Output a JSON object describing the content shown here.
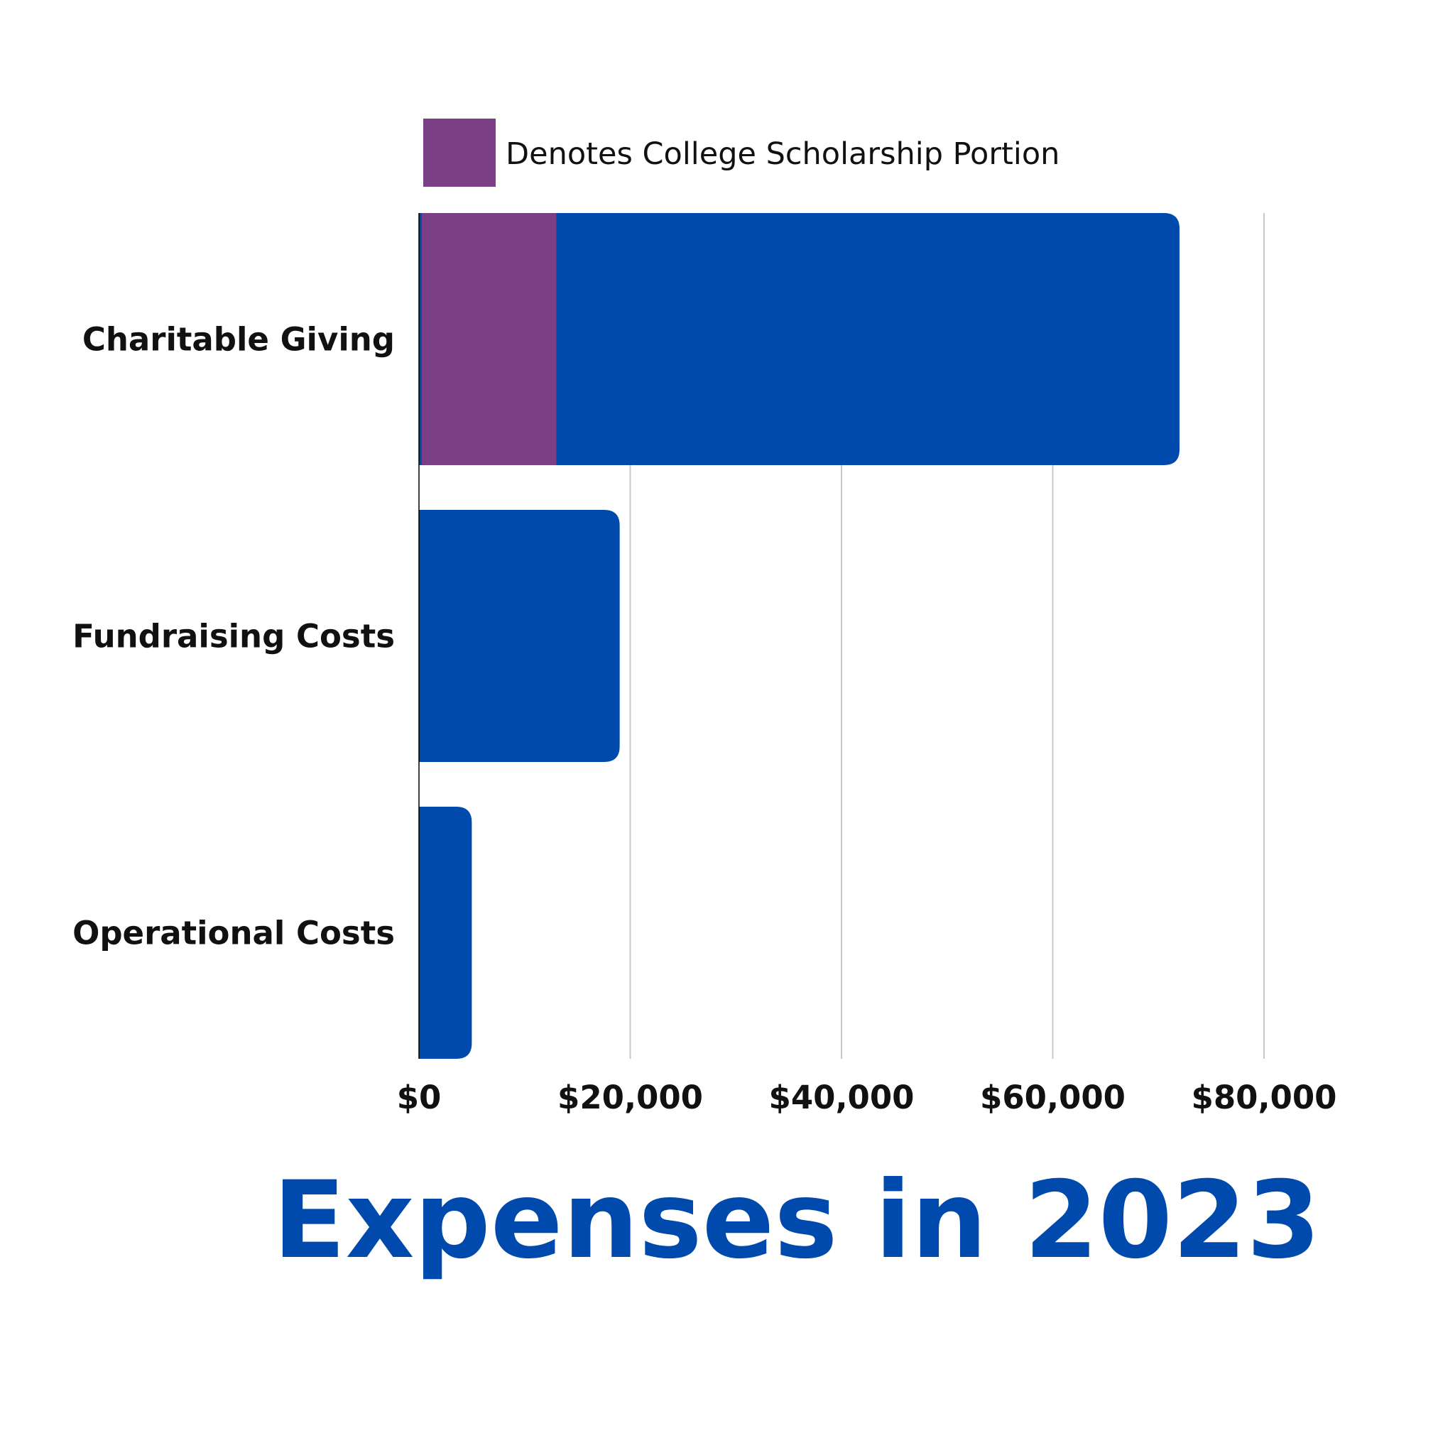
{
  "chart_data": {
    "type": "bar",
    "orientation": "horizontal",
    "title": "Expenses in 2023",
    "categories": [
      "Charitable Giving",
      "Fundraising Costs",
      "Operational Costs"
    ],
    "values": [
      72000,
      19000,
      5000
    ],
    "highlight": {
      "legend_label": "Denotes College Scholarship Portion",
      "category": "Charitable Giving",
      "value": 13000
    },
    "xlim": [
      0,
      80000
    ],
    "x_ticks": [
      0,
      20000,
      40000,
      60000,
      80000
    ],
    "x_tick_labels": [
      "$0",
      "$20,000",
      "$40,000",
      "$60,000",
      "$80,000"
    ],
    "xlabel": "",
    "ylabel": "",
    "grid": "vertical",
    "legend_position": "top",
    "colors": {
      "bar": "#004aad",
      "highlight": "#7a3f84",
      "title": "#004aad",
      "grid": "#c8c8c8",
      "axis": "#000000"
    }
  }
}
